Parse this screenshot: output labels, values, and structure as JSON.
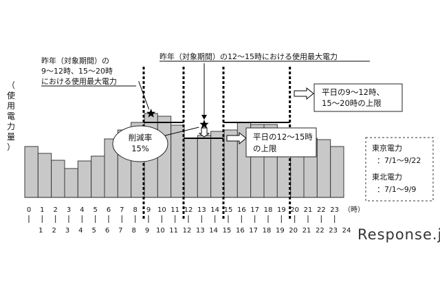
{
  "chart_data": {
    "type": "bar",
    "categories": [
      "0",
      "1",
      "2",
      "3",
      "4",
      "5",
      "6",
      "7",
      "8",
      "9",
      "10",
      "11",
      "12",
      "13",
      "14",
      "15",
      "16",
      "17",
      "18",
      "19",
      "20",
      "21",
      "22",
      "23"
    ],
    "tick_labels_top": [
      "0",
      "1",
      "2",
      "3",
      "4",
      "5",
      "6",
      "7",
      "8",
      "9",
      "10",
      "11",
      "12",
      "13",
      "14",
      "15",
      "16",
      "17",
      "18",
      "19",
      "20",
      "21",
      "22",
      "23"
    ],
    "tick_labels_bottom": [
      "1",
      "2",
      "3",
      "4",
      "5",
      "6",
      "7",
      "8",
      "9",
      "10",
      "11",
      "12",
      "13",
      "14",
      "15",
      "16",
      "17",
      "18",
      "19",
      "20",
      "21",
      "22",
      "23",
      "24"
    ],
    "values": [
      74,
      64,
      54,
      42,
      53,
      60,
      85,
      98,
      109,
      122,
      118,
      105,
      86,
      90,
      96,
      98,
      109,
      106,
      106,
      101,
      87,
      86,
      84,
      74
    ],
    "ylim": [
      0,
      160
    ],
    "ylabel": "（使用電力量）",
    "xlabel_unit": "（時）",
    "peak_9_12_15_20": 122,
    "peak_12_15": 106,
    "limit_weekday_9_12_15_20": 109,
    "limit_weekday_12_15": 86,
    "annotations": {
      "last_year_peak_9_12_15_20": "昨年（対象期間）の\n9～12時、15～20時\nにおける使用最大電力",
      "last_year_peak_12_15": "昨年（対象期間）の12～15時における使用最大電力",
      "limit_9_12_15_20": "平日の9～12時、\n15～20時の上限",
      "limit_12_15": "平日の12～15時\nの上限",
      "reduction": "削減率\n15%"
    },
    "legend": {
      "tepco_name": "東京電力",
      "tepco_period": "：7/1～9/22",
      "tohoku_name": "東北電力",
      "tohoku_period": "：7/1～9/9"
    }
  },
  "watermark": "Response.jp"
}
